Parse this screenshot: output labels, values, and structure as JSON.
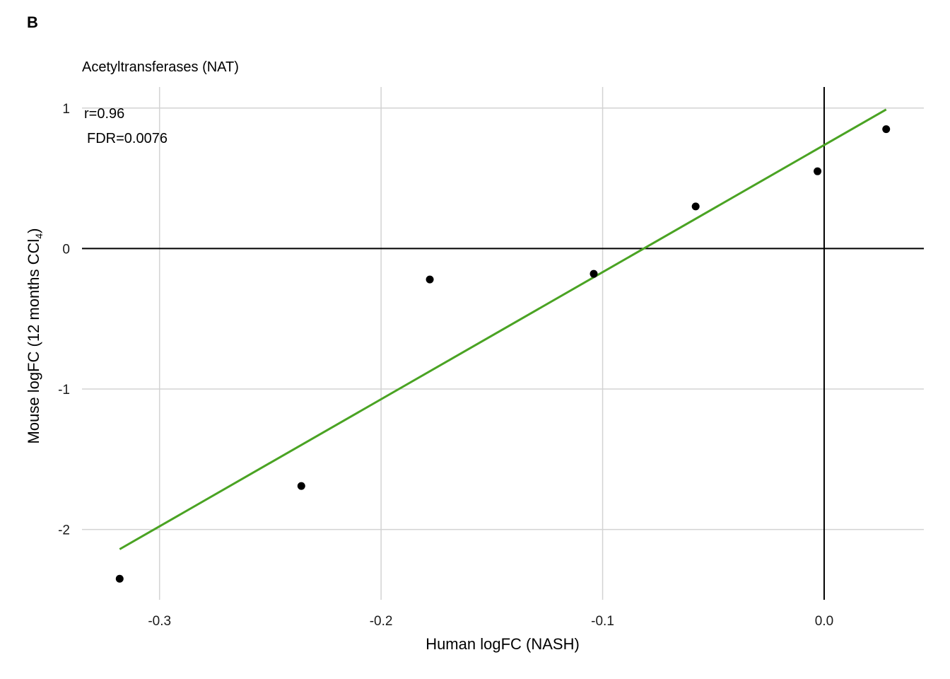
{
  "panel_label": "B",
  "chart_data": {
    "type": "scatter",
    "title": "Acetyltransferases (NAT)",
    "xlabel": "Human logFC (NASH)",
    "ylabel_main": "Mouse logFC (12 months CCl",
    "ylabel_sub": "4",
    "ylabel_end": ")",
    "xlim": [
      -0.335,
      0.045
    ],
    "ylim": [
      -2.5,
      1.15
    ],
    "x_ticks": [
      -0.3,
      -0.2,
      -0.1,
      0.0
    ],
    "x_tick_labels": [
      "-0.3",
      "-0.2",
      "-0.1",
      "0.0"
    ],
    "y_ticks": [
      -2,
      -1,
      0,
      1
    ],
    "y_tick_labels": [
      "-2",
      "-1",
      "0",
      "1"
    ],
    "grid": true,
    "points": [
      {
        "x": -0.318,
        "y": -2.35
      },
      {
        "x": -0.236,
        "y": -1.69
      },
      {
        "x": -0.178,
        "y": -0.22
      },
      {
        "x": -0.104,
        "y": -0.18
      },
      {
        "x": -0.058,
        "y": 0.3
      },
      {
        "x": -0.003,
        "y": 0.55
      },
      {
        "x": 0.028,
        "y": 0.85
      }
    ],
    "fit_line": {
      "x": [
        -0.318,
        0.028
      ],
      "y": [
        -2.14,
        0.99
      ],
      "color": "#4aa323"
    },
    "reference_lines": {
      "x": 0,
      "y": 0
    },
    "annotations": {
      "r": "r=0.96",
      "fdr": "FDR=0.0076"
    },
    "point_color": "#000000",
    "grid_color": "#d3d3d3"
  }
}
